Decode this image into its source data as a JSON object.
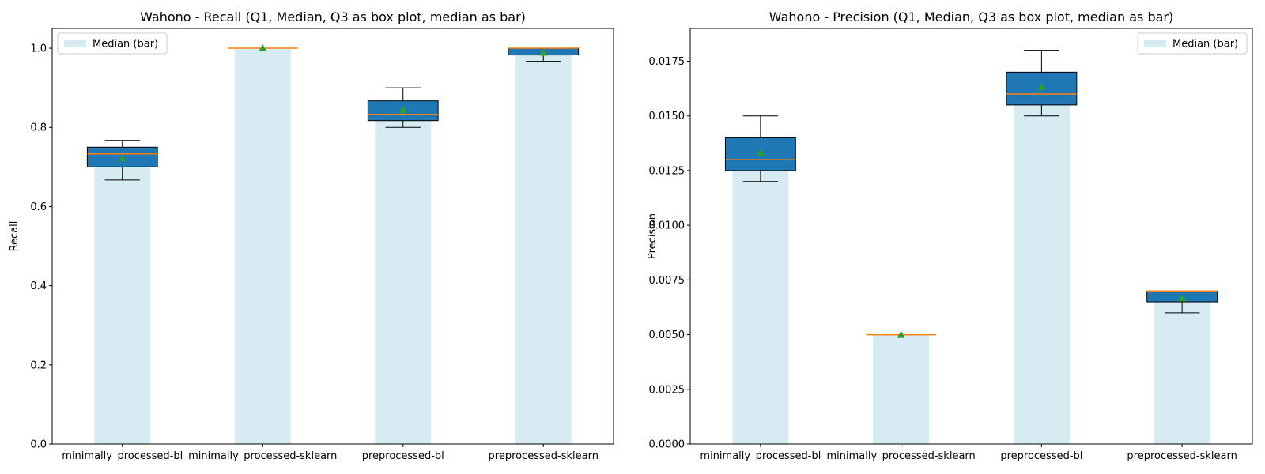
{
  "chart_data": [
    {
      "type": "box",
      "title": "Wahono - Recall (Q1, Median, Q3 as box plot, median as bar)",
      "ylabel": "Recall",
      "xlabel": "",
      "ylim": [
        0,
        1.05
      ],
      "yticks": [
        "0.0",
        "0.2",
        "0.4",
        "0.6",
        "0.8",
        "1.0"
      ],
      "ytick_values": [
        0,
        0.2,
        0.4,
        0.6,
        0.8,
        1.0
      ],
      "categories": [
        "minimally_processed-bl",
        "minimally_processed-sklearn",
        "preprocessed-bl",
        "preprocessed-sklearn"
      ],
      "median_bars": [
        0.733,
        1.0,
        0.833,
        1.0
      ],
      "boxes": [
        {
          "whisker_low": 0.667,
          "q1": 0.7,
          "median": 0.733,
          "q3": 0.75,
          "whisker_high": 0.767,
          "mean": 0.722
        },
        {
          "whisker_low": 1.0,
          "q1": 1.0,
          "median": 1.0,
          "q3": 1.0,
          "whisker_high": 1.0,
          "mean": 1.0
        },
        {
          "whisker_low": 0.8,
          "q1": 0.817,
          "median": 0.833,
          "q3": 0.867,
          "whisker_high": 0.9,
          "mean": 0.844
        },
        {
          "whisker_low": 0.967,
          "q1": 0.983,
          "median": 1.0,
          "q3": 1.0,
          "whisker_high": 1.0,
          "mean": 0.989
        }
      ],
      "legend": {
        "label": "Median (bar)",
        "position": "upper left"
      }
    },
    {
      "type": "box",
      "title": "Wahono - Precision (Q1, Median, Q3 as box plot, median as bar)",
      "ylabel": "Precision",
      "xlabel": "",
      "ylim": [
        0,
        0.019
      ],
      "yticks": [
        "0.0000",
        "0.0025",
        "0.0050",
        "0.0075",
        "0.0100",
        "0.0125",
        "0.0150",
        "0.0175"
      ],
      "ytick_values": [
        0,
        0.0025,
        0.005,
        0.0075,
        0.01,
        0.0125,
        0.015,
        0.0175
      ],
      "categories": [
        "minimally_processed-bl",
        "minimally_processed-sklearn",
        "preprocessed-bl",
        "preprocessed-sklearn"
      ],
      "median_bars": [
        0.013,
        0.005,
        0.016,
        0.007
      ],
      "boxes": [
        {
          "whisker_low": 0.012,
          "q1": 0.0125,
          "median": 0.013,
          "q3": 0.014,
          "whisker_high": 0.015,
          "mean": 0.01333
        },
        {
          "whisker_low": 0.005,
          "q1": 0.005,
          "median": 0.005,
          "q3": 0.005,
          "whisker_high": 0.005,
          "mean": 0.005
        },
        {
          "whisker_low": 0.015,
          "q1": 0.0155,
          "median": 0.016,
          "q3": 0.017,
          "whisker_high": 0.018,
          "mean": 0.01633
        },
        {
          "whisker_low": 0.006,
          "q1": 0.0065,
          "median": 0.007,
          "q3": 0.007,
          "whisker_high": 0.007,
          "mean": 0.00667
        }
      ],
      "legend": {
        "label": "Median (bar)",
        "position": "upper right"
      }
    }
  ],
  "colors": {
    "median_bar": "#add8e6",
    "box_fill": "#1f77b4",
    "median_line": "#ff7f0e",
    "mean_marker": "#2ca02c"
  }
}
